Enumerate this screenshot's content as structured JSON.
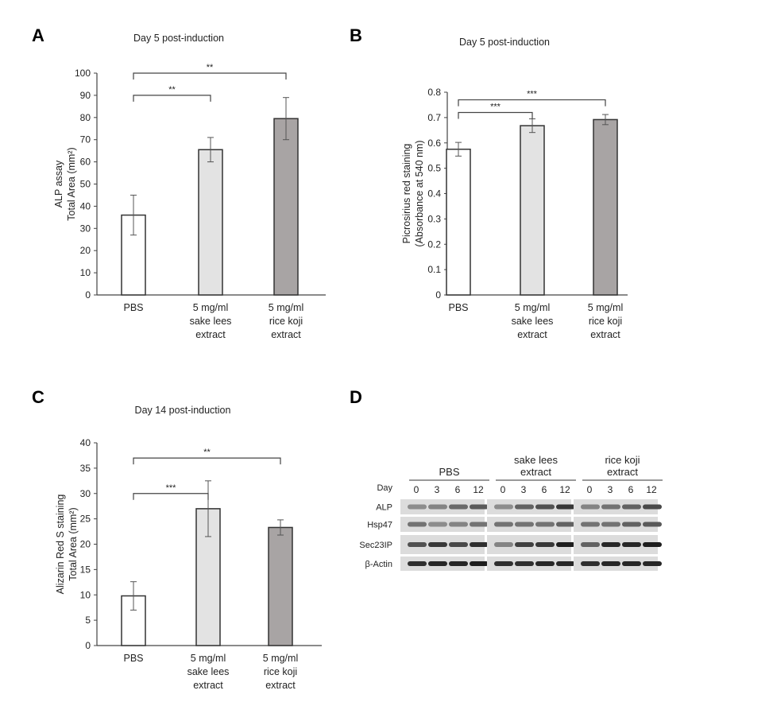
{
  "chart_data": [
    {
      "panel": "A",
      "type": "bar",
      "title": "Day 5 post-induction",
      "ylabel": [
        "ALP assay",
        "Total Area (mm²)"
      ],
      "categories": [
        [
          "PBS"
        ],
        [
          "5 mg/ml",
          "sake lees",
          "extract"
        ],
        [
          "5 mg/ml",
          "rice koji",
          "extract"
        ]
      ],
      "values": [
        36,
        65.5,
        79.5
      ],
      "errors": [
        9,
        5.5,
        9.5
      ],
      "colors": [
        "#ffffff",
        "#e3e3e3",
        "#a8a4a4"
      ],
      "ylim": [
        0,
        100
      ],
      "yticks": [
        0,
        10,
        20,
        30,
        40,
        50,
        60,
        70,
        80,
        90,
        100
      ],
      "ytick_labels": [
        "0",
        "10",
        "20",
        "30",
        "40",
        "50",
        "60",
        "70",
        "80",
        "90",
        "100"
      ],
      "significance": [
        {
          "from": 0,
          "to": 1,
          "level": 90,
          "label": "**"
        },
        {
          "from": 0,
          "to": 2,
          "level": 100,
          "label": "**"
        }
      ]
    },
    {
      "panel": "B",
      "type": "bar",
      "title": "Day 5 post-induction",
      "ylabel": [
        "Picrosirius red staining",
        "(Absorbance at 540 nm)"
      ],
      "categories": [
        [
          "PBS"
        ],
        [
          "5 mg/ml",
          "sake lees",
          "extract"
        ],
        [
          "5 mg/ml",
          "rice koji",
          "extract"
        ]
      ],
      "values": [
        0.575,
        0.668,
        0.692
      ],
      "errors": [
        0.027,
        0.027,
        0.02
      ],
      "colors": [
        "#ffffff",
        "#e3e3e3",
        "#a8a4a4"
      ],
      "ylim": [
        0,
        0.8
      ],
      "yticks": [
        0,
        0.1,
        0.2,
        0.3,
        0.4,
        0.5,
        0.6,
        0.7,
        0.8
      ],
      "ytick_labels": [
        "0",
        "0.1",
        "0.2",
        "0.3",
        "0.4",
        "0.5",
        "0.6",
        "0.7",
        "0.8"
      ],
      "significance": [
        {
          "from": 0,
          "to": 1,
          "level": 0.72,
          "label": "***"
        },
        {
          "from": 0,
          "to": 2,
          "level": 0.77,
          "label": "***"
        }
      ]
    },
    {
      "panel": "C",
      "type": "bar",
      "title": "Day 14 post-induction",
      "ylabel": [
        "Alizarin Red S staining",
        "Total Area (mm²)"
      ],
      "categories": [
        [
          "PBS"
        ],
        [
          "5 mg/ml",
          "sake lees",
          "extract"
        ],
        [
          "5 mg/ml",
          "rice koji",
          "extract"
        ]
      ],
      "values": [
        9.8,
        27,
        23.3
      ],
      "errors": [
        2.8,
        5.5,
        1.5
      ],
      "colors": [
        "#ffffff",
        "#e3e3e3",
        "#a8a4a4"
      ],
      "ylim": [
        0,
        40
      ],
      "yticks": [
        0,
        5,
        10,
        15,
        20,
        25,
        30,
        35,
        40
      ],
      "ytick_labels": [
        "0",
        "5",
        "10",
        "15",
        "20",
        "25",
        "30",
        "35",
        "40"
      ],
      "significance": [
        {
          "from": 0,
          "to": 1,
          "level": 30,
          "label": "***"
        },
        {
          "from": 0,
          "to": 2,
          "level": 37,
          "label": "**"
        }
      ]
    },
    {
      "panel": "D",
      "type": "blot",
      "groups": [
        [
          "PBS"
        ],
        [
          "sake lees",
          "extract"
        ],
        [
          "rice koji",
          "extract"
        ]
      ],
      "day_label": "Day",
      "days": [
        "0",
        "3",
        "6",
        "12"
      ],
      "rows": [
        "ALP",
        "Hsp47",
        "Sec23IP",
        "β-Actin"
      ],
      "band_intensity": [
        [
          0.35,
          0.4,
          0.55,
          0.65,
          0.35,
          0.6,
          0.7,
          0.85,
          0.4,
          0.5,
          0.6,
          0.75
        ],
        [
          0.5,
          0.35,
          0.4,
          0.5,
          0.5,
          0.5,
          0.5,
          0.6,
          0.5,
          0.5,
          0.6,
          0.65
        ],
        [
          0.7,
          0.85,
          0.75,
          0.9,
          0.4,
          0.8,
          0.85,
          1.0,
          0.6,
          0.95,
          0.95,
          1.0
        ],
        [
          0.9,
          0.95,
          0.95,
          1.0,
          0.9,
          0.9,
          0.95,
          0.95,
          0.9,
          0.95,
          0.95,
          0.95
        ]
      ]
    }
  ],
  "panel_letters": [
    "A",
    "B",
    "C",
    "D"
  ]
}
